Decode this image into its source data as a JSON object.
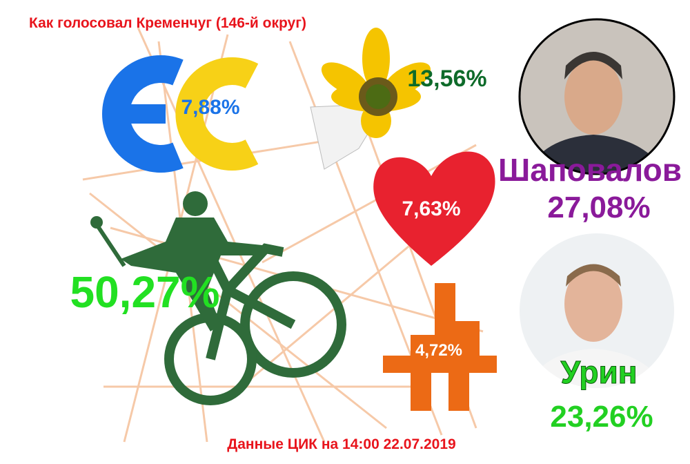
{
  "header": {
    "title": "Как голосовал Кременчуг (146-й округ)"
  },
  "parties": [
    {
      "label": "7,88%"
    },
    {
      "label": "13,56%"
    },
    {
      "label": "7,63%"
    },
    {
      "label": "50,27%"
    },
    {
      "label": "4,72%"
    }
  ],
  "candidates": [
    {
      "name": "Шаповалов",
      "label": "27,08%"
    },
    {
      "name": "Урин",
      "label": "23,26%"
    }
  ],
  "footer": {
    "source": "Данные ЦИК на 14:00 22.07.2019"
  }
}
